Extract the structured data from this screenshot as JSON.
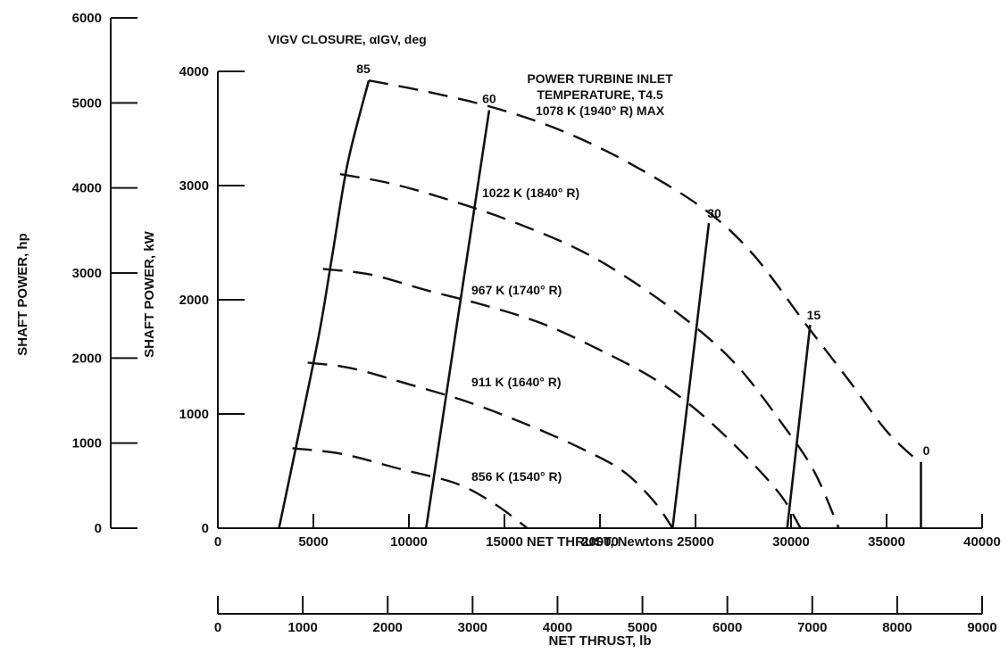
{
  "chart_data": {
    "type": "line",
    "title": "",
    "annotations": {
      "igv_title": "VIGV CLOSURE, αIGV, deg",
      "temp_title_line1": "POWER TURBINE INLET",
      "temp_title_line2": "TEMPERATURE, T4.5",
      "temp_title_line3": "1078 K (1940° R) MAX"
    },
    "x_axis": {
      "label": "NET THRUST, Newtons",
      "range": [
        0,
        40000
      ],
      "ticks": [
        0,
        5000,
        10000,
        15000,
        20000,
        25000,
        30000,
        35000,
        40000
      ],
      "tick_labels": [
        "0",
        "5000",
        "10000",
        "15000",
        "20000",
        "25000",
        "30000",
        "35000",
        "40000"
      ]
    },
    "x_axis_secondary": {
      "label": "NET THRUST, lb",
      "range": [
        0,
        9000
      ],
      "ticks": [
        0,
        1000,
        2000,
        3000,
        4000,
        5000,
        6000,
        7000,
        8000,
        9000
      ],
      "tick_labels": [
        "0",
        "1000",
        "2000",
        "3000",
        "4000",
        "5000",
        "6000",
        "7000",
        "8000",
        "9000"
      ]
    },
    "y_axis": {
      "label": "SHAFT POWER, kW",
      "range": [
        0,
        4000
      ],
      "ticks": [
        0,
        1000,
        2000,
        3000,
        4000
      ],
      "tick_labels": [
        "0",
        "1000",
        "2000",
        "3000",
        "4000"
      ]
    },
    "y_axis_secondary": {
      "label": "SHAFT POWER, hp",
      "range": [
        0,
        6000
      ],
      "ticks": [
        0,
        1000,
        2000,
        3000,
        4000,
        5000,
        6000
      ],
      "tick_labels": [
        "0",
        "1000",
        "2000",
        "3000",
        "4000",
        "5000",
        "6000"
      ]
    },
    "temperature_series": [
      {
        "name": "1078 K (1940° R) MAX",
        "label_text": "",
        "points": [
          [
            7900,
            3920
          ],
          [
            11000,
            3820
          ],
          [
            14500,
            3680
          ],
          [
            18000,
            3480
          ],
          [
            21500,
            3200
          ],
          [
            25400,
            2800
          ],
          [
            28000,
            2400
          ],
          [
            30800,
            1780
          ],
          [
            33000,
            1300
          ],
          [
            35000,
            850
          ],
          [
            36700,
            580
          ]
        ]
      },
      {
        "name": "1022 K (1840° R)",
        "label_text": "1022 K (1840° R)",
        "points": [
          [
            6400,
            3100
          ],
          [
            9000,
            3020
          ],
          [
            12000,
            2880
          ],
          [
            15500,
            2680
          ],
          [
            19000,
            2430
          ],
          [
            22000,
            2130
          ],
          [
            25000,
            1760
          ],
          [
            27300,
            1400
          ],
          [
            29600,
            900
          ],
          [
            31200,
            500
          ],
          [
            32500,
            0
          ]
        ]
      },
      {
        "name": "967 K (1740° R)",
        "label_text": "967 K (1740° R)",
        "points": [
          [
            5500,
            2270
          ],
          [
            8000,
            2220
          ],
          [
            11000,
            2080
          ],
          [
            14000,
            1950
          ],
          [
            17000,
            1790
          ],
          [
            20000,
            1560
          ],
          [
            23000,
            1290
          ],
          [
            25500,
            970
          ],
          [
            27800,
            600
          ],
          [
            29500,
            280
          ],
          [
            30500,
            0
          ]
        ]
      },
      {
        "name": "911 K (1640° R)",
        "label_text": "911 K (1640° R)",
        "points": [
          [
            4700,
            1450
          ],
          [
            7000,
            1400
          ],
          [
            10000,
            1260
          ],
          [
            13000,
            1110
          ],
          [
            16000,
            920
          ],
          [
            19000,
            700
          ],
          [
            21200,
            500
          ],
          [
            22800,
            240
          ],
          [
            23800,
            0
          ]
        ]
      },
      {
        "name": "856 K (1540° R)",
        "label_text": "856 K (1540° R)",
        "points": [
          [
            3900,
            700
          ],
          [
            6500,
            650
          ],
          [
            9500,
            520
          ],
          [
            12500,
            390
          ],
          [
            14500,
            210
          ],
          [
            16200,
            0
          ]
        ]
      }
    ],
    "igv_series": [
      {
        "name": "85",
        "label_text": "85",
        "points": [
          [
            3200,
            0
          ],
          [
            4200,
            800
          ],
          [
            5300,
            1700
          ],
          [
            6000,
            2400
          ],
          [
            6800,
            3200
          ],
          [
            7900,
            3920
          ]
        ]
      },
      {
        "name": "60",
        "label_text": "60",
        "points": [
          [
            10900,
            0
          ],
          [
            14200,
            3660
          ]
        ]
      },
      {
        "name": "30",
        "label_text": "30",
        "points": [
          [
            23800,
            0
          ],
          [
            25700,
            2670
          ]
        ]
      },
      {
        "name": "15",
        "label_text": "15",
        "points": [
          [
            29800,
            0
          ],
          [
            31000,
            1780
          ]
        ]
      },
      {
        "name": "0",
        "label_text": "0",
        "points": [
          [
            36800,
            0
          ],
          [
            36800,
            580
          ]
        ]
      }
    ]
  }
}
